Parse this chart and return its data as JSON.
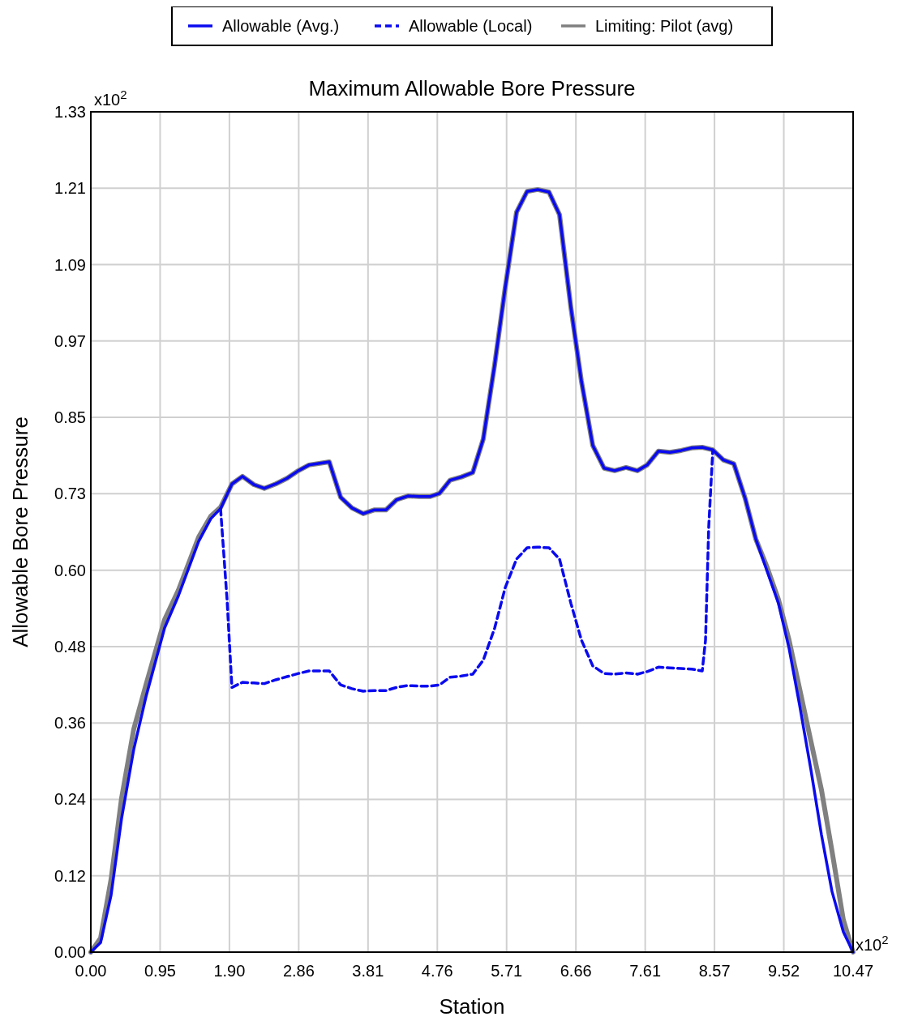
{
  "chart_data": {
    "type": "line",
    "title": "Maximum Allowable Bore Pressure",
    "xlabel": "Station",
    "ylabel": "Allowable Bore Pressure",
    "annotations": [
      "x10$^{2}$",
      "x10$^{2}$"
    ],
    "xlim": [
      0,
      10.47
    ],
    "ylim": [
      0,
      1.33
    ],
    "xticks": [
      {
        "value": 0,
        "label": "0.00"
      },
      {
        "value": 0.9518,
        "label": "0.95"
      },
      {
        "value": 1.9036,
        "label": "1.90"
      },
      {
        "value": 2.8555,
        "label": "2.86"
      },
      {
        "value": 3.8073,
        "label": "3.81"
      },
      {
        "value": 4.7591,
        "label": "4.76"
      },
      {
        "value": 5.7109,
        "label": "5.71"
      },
      {
        "value": 6.6627,
        "label": "6.66"
      },
      {
        "value": 7.6145,
        "label": "7.61"
      },
      {
        "value": 8.5664,
        "label": "8.57"
      },
      {
        "value": 9.5182,
        "label": "9.52"
      },
      {
        "value": 10.47,
        "label": "10.47"
      }
    ],
    "yticks": [
      {
        "value": 0,
        "label": "0.00"
      },
      {
        "value": 0.1209,
        "label": "0.12"
      },
      {
        "value": 0.2418,
        "label": "0.24"
      },
      {
        "value": 0.3627,
        "label": "0.36"
      },
      {
        "value": 0.4836,
        "label": "0.48"
      },
      {
        "value": 0.6045,
        "label": "0.60"
      },
      {
        "value": 0.7255,
        "label": "0.73"
      },
      {
        "value": 0.8464,
        "label": "0.85"
      },
      {
        "value": 0.9673,
        "label": "0.97"
      },
      {
        "value": 1.0882,
        "label": "1.09"
      },
      {
        "value": 1.2091,
        "label": "1.21"
      },
      {
        "value": 1.33,
        "label": "1.33"
      }
    ],
    "grid": true,
    "legend": "top",
    "x": [
      0,
      0.134,
      0.278,
      0.423,
      0.59,
      0.757,
      1.013,
      1.203,
      1.481,
      1.648,
      1.782,
      1.938,
      2.083,
      2.239,
      2.383,
      2.539,
      2.695,
      2.851,
      2.996,
      3.275,
      3.431,
      3.587,
      3.742,
      3.898,
      4.054,
      4.199,
      4.355,
      4.511,
      4.656,
      4.789,
      4.934,
      5.09,
      5.246,
      5.39,
      5.547,
      5.692,
      5.847,
      5.992,
      6.137,
      6.293,
      6.438,
      6.594,
      6.738,
      6.894,
      7.05,
      7.195,
      7.351,
      7.507,
      7.641,
      7.797,
      7.953,
      8.109,
      8.253,
      8.398,
      8.543,
      8.688,
      8.832,
      8.988,
      9.133,
      9.289,
      9.445,
      9.59,
      9.735,
      9.89,
      10.035,
      10.18,
      10.336,
      10.47
    ],
    "series": [
      {
        "name": "Allowable (Avg.)",
        "color": "#0a0af0",
        "line_style": "solid",
        "values": [
          0,
          0.015,
          0.09,
          0.212,
          0.321,
          0.404,
          0.513,
          0.564,
          0.65,
          0.686,
          0.702,
          0.741,
          0.753,
          0.74,
          0.734,
          0.741,
          0.75,
          0.762,
          0.771,
          0.776,
          0.72,
          0.703,
          0.694,
          0.7,
          0.7,
          0.716,
          0.722,
          0.721,
          0.721,
          0.726,
          0.747,
          0.752,
          0.759,
          0.812,
          0.93,
          1.052,
          1.171,
          1.204,
          1.207,
          1.203,
          1.167,
          1.02,
          0.904,
          0.802,
          0.766,
          0.762,
          0.767,
          0.762,
          0.771,
          0.793,
          0.791,
          0.794,
          0.798,
          0.799,
          0.795,
          0.779,
          0.773,
          0.718,
          0.654,
          0.603,
          0.552,
          0.481,
          0.391,
          0.289,
          0.186,
          0.096,
          0.032,
          0
        ]
      },
      {
        "name": "Allowable (Local)",
        "color": "#0a0af0",
        "line_style": "dashed",
        "x": [
          1.782,
          1.871,
          1.938,
          2.083,
          2.239,
          2.383,
          2.539,
          2.695,
          2.851,
          2.996,
          3.275,
          3.431,
          3.587,
          3.742,
          3.898,
          4.054,
          4.199,
          4.355,
          4.511,
          4.656,
          4.789,
          4.934,
          5.09,
          5.246,
          5.39,
          5.547,
          5.692,
          5.847,
          5.992,
          6.137,
          6.293,
          6.438,
          6.594,
          6.738,
          6.894,
          7.05,
          7.195,
          7.351,
          7.507,
          7.641,
          7.797,
          7.953,
          8.109,
          8.253,
          8.398,
          8.443,
          8.487,
          8.543
        ],
        "values": [
          0.702,
          0.558,
          0.419,
          0.427,
          0.426,
          0.425,
          0.431,
          0.436,
          0.441,
          0.445,
          0.445,
          0.423,
          0.417,
          0.413,
          0.414,
          0.414,
          0.419,
          0.422,
          0.421,
          0.421,
          0.423,
          0.435,
          0.437,
          0.44,
          0.462,
          0.513,
          0.577,
          0.622,
          0.64,
          0.641,
          0.64,
          0.622,
          0.552,
          0.494,
          0.453,
          0.441,
          0.44,
          0.442,
          0.44,
          0.444,
          0.451,
          0.45,
          0.449,
          0.448,
          0.445,
          0.494,
          0.673,
          0.795
        ]
      },
      {
        "name": "Limiting: Pilot (avg)",
        "color": "#808080",
        "line_style": "solid",
        "values": [
          0,
          0.022,
          0.115,
          0.244,
          0.353,
          0.423,
          0.526,
          0.573,
          0.657,
          0.69,
          0.704,
          0.741,
          0.753,
          0.74,
          0.734,
          0.741,
          0.75,
          0.762,
          0.771,
          0.776,
          0.72,
          0.703,
          0.694,
          0.7,
          0.7,
          0.716,
          0.722,
          0.721,
          0.721,
          0.726,
          0.747,
          0.752,
          0.759,
          0.812,
          0.93,
          1.052,
          1.171,
          1.204,
          1.207,
          1.203,
          1.167,
          1.02,
          0.904,
          0.802,
          0.766,
          0.762,
          0.767,
          0.762,
          0.771,
          0.793,
          0.791,
          0.794,
          0.798,
          0.799,
          0.795,
          0.779,
          0.773,
          0.718,
          0.654,
          0.609,
          0.558,
          0.494,
          0.417,
          0.334,
          0.257,
          0.16,
          0.051,
          0
        ]
      }
    ]
  }
}
